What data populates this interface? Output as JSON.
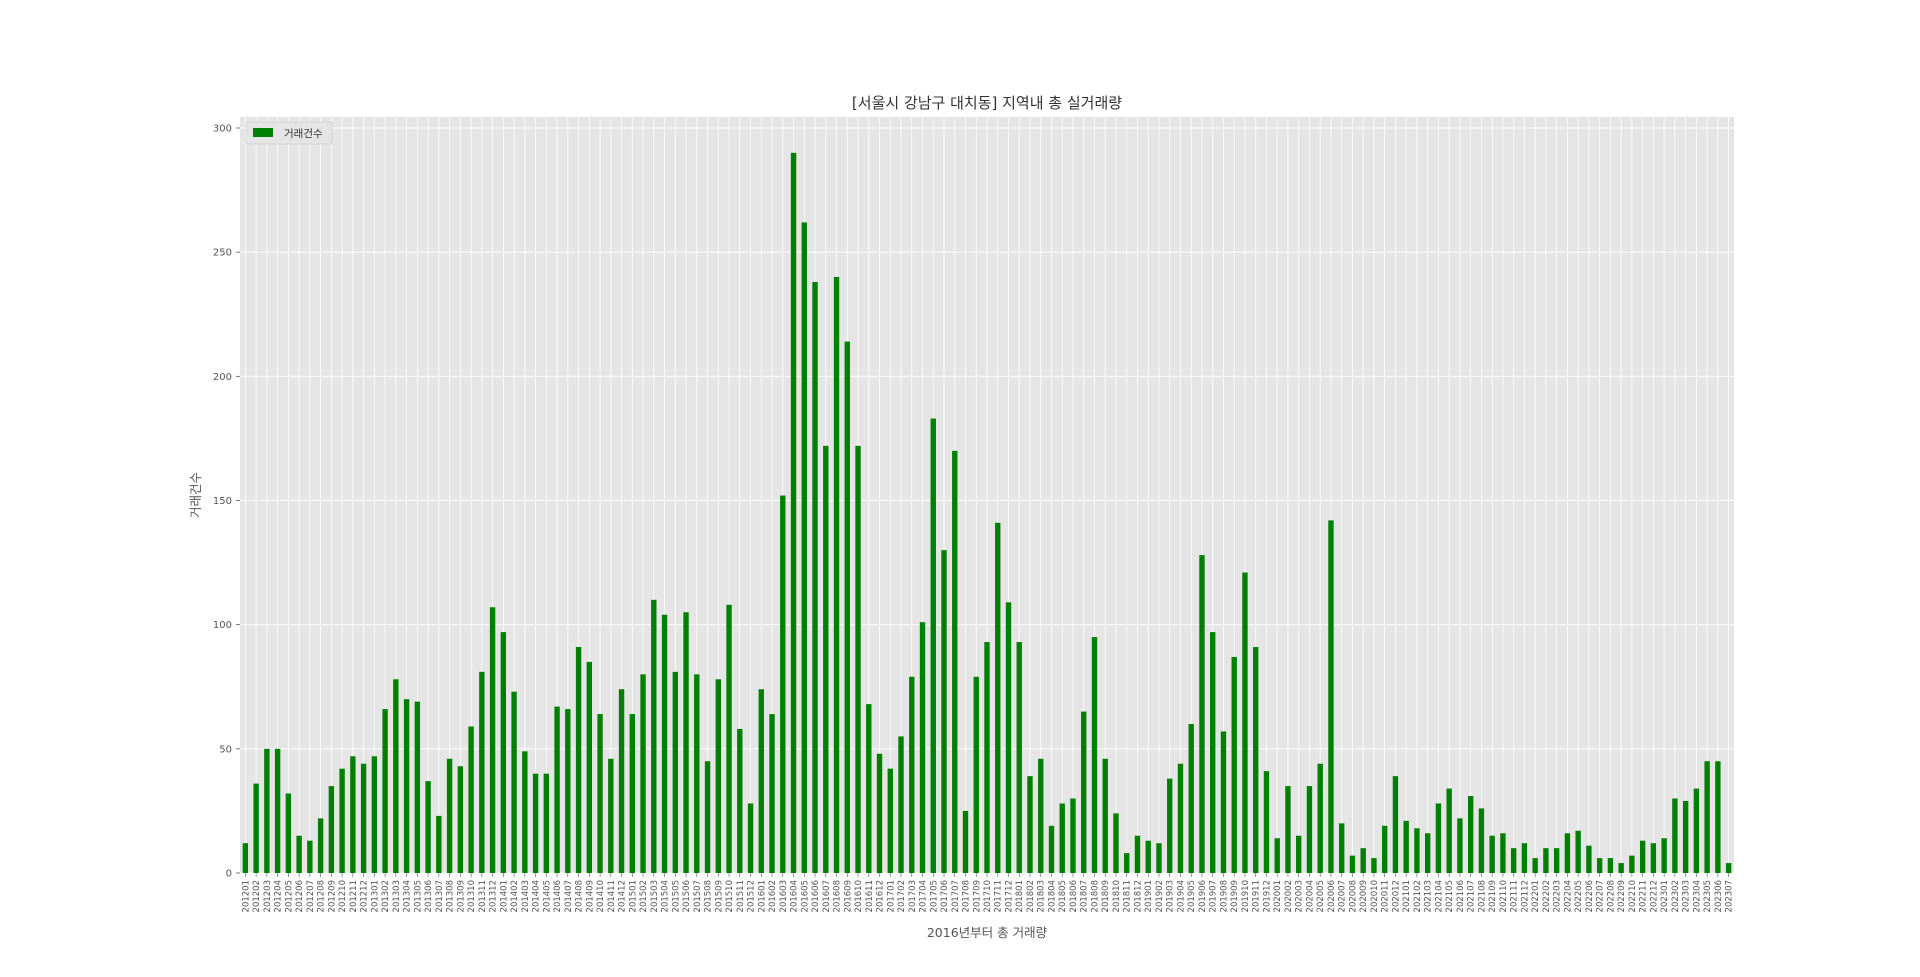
{
  "chart_data": {
    "type": "bar",
    "title": "[서울시 강남구 대치동] 지역내 총 실거래량",
    "xlabel": "2016년부터 총 거래량",
    "ylabel": "거래건수",
    "ylim": [
      0,
      300
    ],
    "yticks": [
      0,
      50,
      100,
      150,
      200,
      250,
      300
    ],
    "grid": true,
    "legend": "top-left",
    "series": [
      {
        "name": "거래건수",
        "color": "#008000",
        "values": [
          12,
          36,
          50,
          50,
          32,
          15,
          13,
          22,
          35,
          42,
          47,
          44,
          47,
          66,
          78,
          70,
          69,
          37,
          23,
          46,
          43,
          59,
          81,
          107,
          97,
          73,
          49,
          40,
          40,
          67,
          66,
          91,
          85,
          64,
          46,
          74,
          64,
          80,
          110,
          104,
          81,
          105,
          80,
          45,
          78,
          108,
          58,
          28,
          74,
          64,
          152,
          290,
          262,
          238,
          172,
          240,
          214,
          172,
          68,
          48,
          42,
          55,
          79,
          101,
          183,
          130,
          170,
          25,
          79,
          93,
          141,
          109,
          93,
          39,
          46,
          19,
          28,
          30,
          65,
          95,
          46,
          24,
          8,
          15,
          13,
          12,
          38,
          44,
          60,
          128,
          97,
          57,
          87,
          121,
          91,
          41,
          14,
          35,
          15,
          35,
          44,
          142,
          20,
          7,
          10,
          6,
          19,
          39,
          21,
          18,
          16,
          28,
          34,
          22,
          31,
          26,
          15,
          16,
          10,
          12,
          6,
          10,
          10,
          16,
          17,
          11,
          6,
          6,
          4,
          7,
          13,
          12,
          14,
          30,
          29,
          34,
          45,
          45,
          4
        ]
      }
    ],
    "categories": [
      "201201",
      "201202",
      "201203",
      "201204",
      "201205",
      "201206",
      "201207",
      "201208",
      "201209",
      "201210",
      "201211",
      "201212",
      "201301",
      "201302",
      "201303",
      "201304",
      "201305",
      "201306",
      "201307",
      "201308",
      "201309",
      "201310",
      "201311",
      "201312",
      "201401",
      "201402",
      "201403",
      "201404",
      "201405",
      "201406",
      "201407",
      "201408",
      "201409",
      "201410",
      "201411",
      "201412",
      "201501",
      "201502",
      "201503",
      "201504",
      "201505",
      "201506",
      "201507",
      "201508",
      "201509",
      "201510",
      "201511",
      "201512",
      "201601",
      "201602",
      "201603",
      "201604",
      "201605",
      "201606",
      "201607",
      "201608",
      "201609",
      "201610",
      "201611",
      "201612",
      "201701",
      "201702",
      "201703",
      "201704",
      "201705",
      "201706",
      "201707",
      "201708",
      "201709",
      "201710",
      "201711",
      "201712",
      "201801",
      "201802",
      "201803",
      "201804",
      "201805",
      "201806",
      "201807",
      "201808",
      "201809",
      "201810",
      "201811",
      "201812",
      "201901",
      "201902",
      "201903",
      "201904",
      "201905",
      "201906",
      "201907",
      "201908",
      "201909",
      "201910",
      "201911",
      "201912",
      "202001",
      "202002",
      "202003",
      "202004",
      "202005",
      "202006",
      "202007",
      "202008",
      "202009",
      "202010",
      "202011",
      "202012",
      "202101",
      "202102",
      "202103",
      "202104",
      "202105",
      "202106",
      "202107",
      "202108",
      "202109",
      "202110",
      "202111",
      "202112",
      "202201",
      "202202",
      "202203",
      "202204",
      "202205",
      "202206",
      "202207",
      "202208",
      "202209",
      "202210",
      "202211",
      "202212",
      "202301",
      "202302",
      "202303",
      "202304",
      "202305",
      "202306",
      "202307"
    ]
  }
}
